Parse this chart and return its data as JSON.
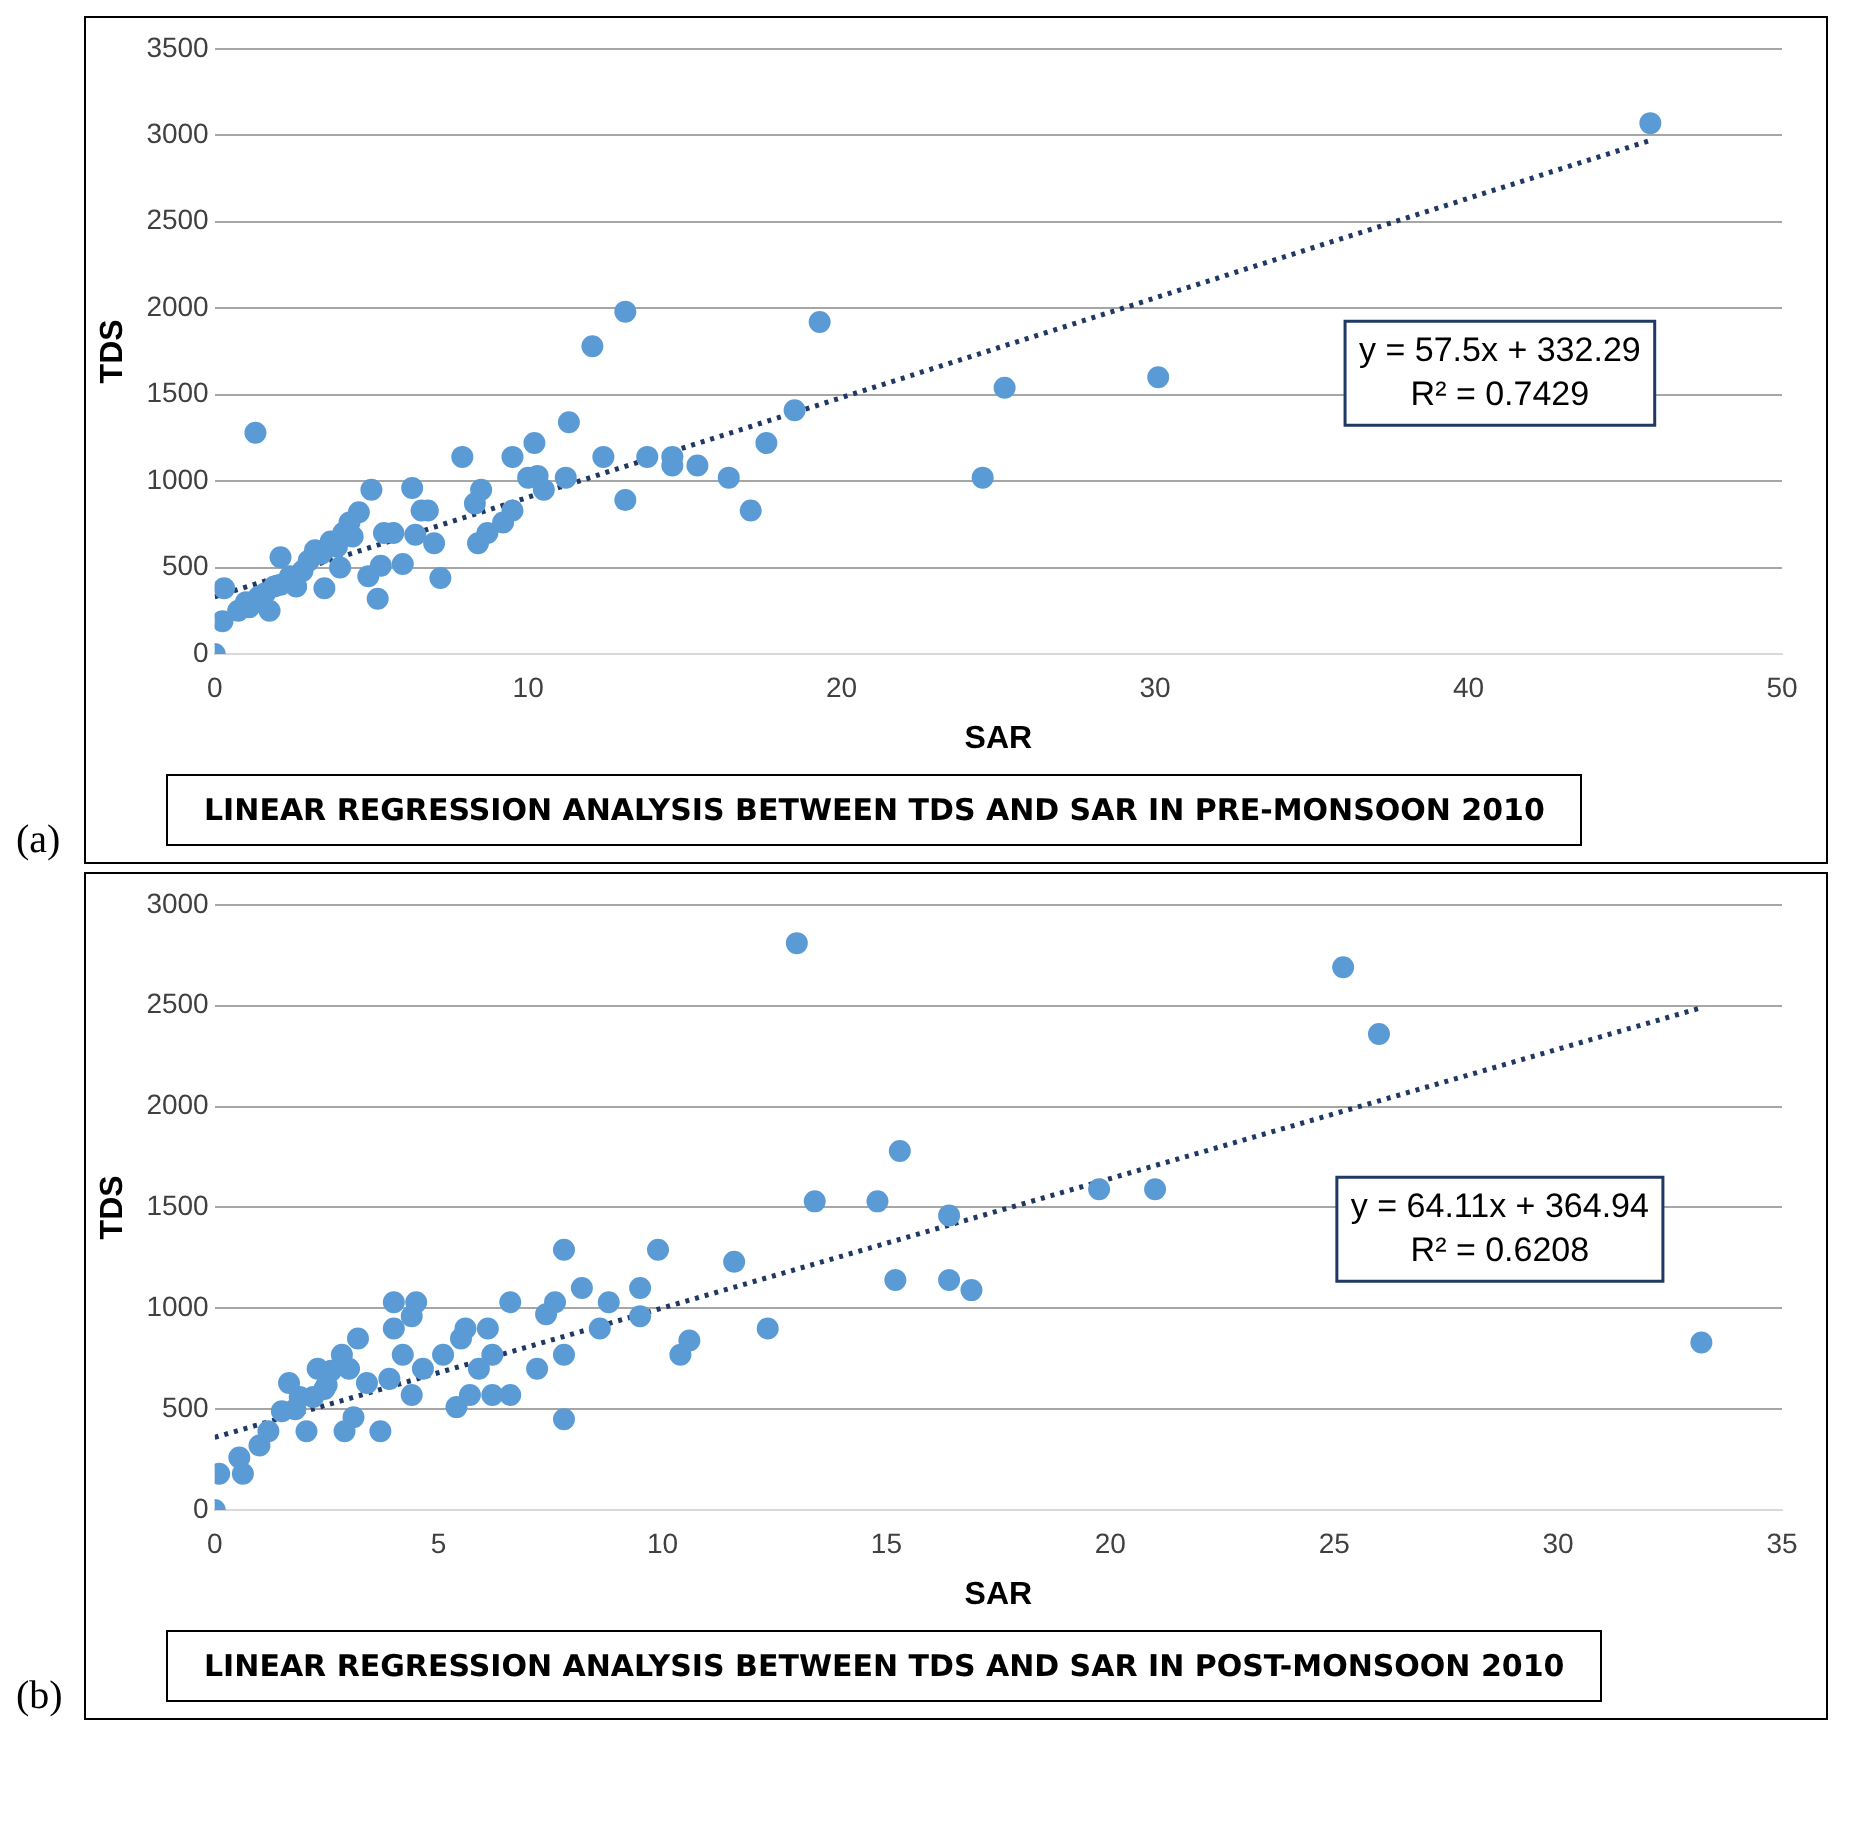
{
  "chart_data": [
    {
      "type": "scatter",
      "title": "LINEAR REGRESSION ANALYSIS BETWEEN TDS AND SAR IN PRE-MONSOON 2010",
      "xlabel": "SAR",
      "ylabel": "TDS",
      "annotations": [
        "(a)",
        "y = 57.5x + 332.29",
        "R² = 0.7429"
      ],
      "xlim": [
        0,
        50
      ],
      "xticks": [
        0,
        10,
        20,
        30,
        40,
        50
      ],
      "ylim": [
        0,
        3500
      ],
      "yticks": [
        0,
        500,
        1000,
        1500,
        2000,
        2500,
        3000,
        3500
      ],
      "grid": "y",
      "legend": false,
      "series": [
        {
          "color": "#5b9bd5",
          "marker": "circle",
          "x": [
            0,
            0.25,
            0.3,
            1.3,
            0.75,
            1.1,
            1.75,
            2.1,
            1.4,
            1.9,
            2.1,
            2.6,
            3.5,
            3.0,
            3.2,
            3.7,
            4.1,
            4.3,
            4.6,
            5.0,
            4.0,
            4.9,
            5.2,
            5.3,
            6.0,
            5.4,
            5.7,
            6.4,
            6.3,
            6.6,
            6.8,
            7.0,
            7.2,
            7.9,
            8.3,
            8.5,
            8.4,
            8.7,
            9.2,
            9.5,
            9.5,
            10.0,
            10.3,
            10.2,
            10.5,
            11.2,
            11.3,
            12.05,
            12.4,
            13.1,
            13.1,
            13.8,
            14.6,
            14.6,
            15.4,
            16.4,
            17.1,
            17.6,
            18.5,
            19.3,
            25.2,
            24.5,
            30.1,
            45.8,
            1.0,
            1.6,
            2.4,
            2.8,
            3.4,
            3.9,
            4.4
          ],
          "values": [
            0,
            190,
            380,
            1280,
            250,
            270,
            250,
            560,
            330,
            390,
            400,
            390,
            380,
            540,
            600,
            650,
            700,
            760,
            820,
            950,
            500,
            450,
            320,
            510,
            520,
            700,
            700,
            690,
            960,
            830,
            830,
            640,
            440,
            1140,
            870,
            950,
            640,
            700,
            760,
            830,
            1140,
            1020,
            1030,
            1220,
            950,
            1020,
            1340,
            1780,
            1140,
            1980,
            890,
            1140,
            1140,
            1090,
            1090,
            1020,
            830,
            1220,
            1410,
            1920,
            1540,
            1020,
            1600,
            3070,
            300,
            350,
            450,
            480,
            580,
            620,
            680
          ]
        },
        {
          "type": "line",
          "color": "#1f3864",
          "marker": "none",
          "line_style": "dotted",
          "x": [
            0,
            45.8
          ],
          "values": [
            330,
            2970
          ]
        }
      ]
    },
    {
      "type": "scatter",
      "title": "LINEAR REGRESSION ANALYSIS BETWEEN TDS AND SAR IN POST-MONSOON 2010",
      "xlabel": "SAR",
      "ylabel": "TDS",
      "annotations": [
        "(b)",
        "y = 64.11x + 364.94",
        "R² = 0.6208"
      ],
      "xlim": [
        0,
        35
      ],
      "xticks": [
        0,
        5,
        10,
        15,
        20,
        25,
        30,
        35
      ],
      "ylim": [
        0,
        3000
      ],
      "yticks": [
        0,
        500,
        1000,
        1500,
        2000,
        2500,
        3000
      ],
      "grid": "y",
      "legend": false,
      "series": [
        {
          "color": "#5b9bd5",
          "marker": "circle",
          "x": [
            0,
            0.1,
            0.63,
            0.55,
            1.0,
            1.2,
            1.5,
            1.66,
            1.9,
            2.05,
            2.3,
            2.45,
            2.6,
            2.84,
            2.9,
            3.1,
            3.2,
            3.4,
            3.7,
            4.0,
            4.5,
            4.0,
            4.4,
            4.2,
            4.4,
            3.9,
            4.65,
            5.1,
            5.4,
            5.5,
            5.6,
            5.7,
            5.9,
            6.1,
            6.2,
            6.2,
            6.6,
            6.6,
            7.2,
            7.4,
            7.6,
            7.8,
            7.8,
            7.8,
            8.2,
            8.6,
            8.8,
            9.5,
            9.5,
            9.9,
            10.4,
            10.6,
            11.6,
            12.35,
            13.0,
            13.4,
            14.8,
            15.3,
            15.2,
            16.4,
            16.4,
            16.9,
            19.75,
            21.0,
            25.2,
            26.0,
            33.2,
            1.8,
            2.2,
            2.5,
            3.0
          ],
          "values": [
            0,
            180,
            180,
            260,
            320,
            390,
            490,
            630,
            560,
            390,
            700,
            600,
            690,
            770,
            390,
            460,
            850,
            630,
            390,
            1030,
            1030,
            900,
            960,
            770,
            570,
            650,
            700,
            770,
            510,
            850,
            900,
            570,
            700,
            900,
            770,
            570,
            1030,
            570,
            700,
            970,
            1030,
            1290,
            770,
            450,
            1100,
            900,
            1030,
            1100,
            960,
            1290,
            770,
            840,
            1230,
            900,
            2810,
            1530,
            1530,
            1780,
            1140,
            1460,
            1140,
            1090,
            1590,
            1590,
            2690,
            2360,
            830,
            500,
            560,
            620,
            700
          ]
        },
        {
          "type": "line",
          "color": "#1f3864",
          "marker": "none",
          "line_style": "dotted",
          "x": [
            0,
            33.2
          ],
          "values": [
            360,
            2490
          ]
        }
      ]
    }
  ]
}
